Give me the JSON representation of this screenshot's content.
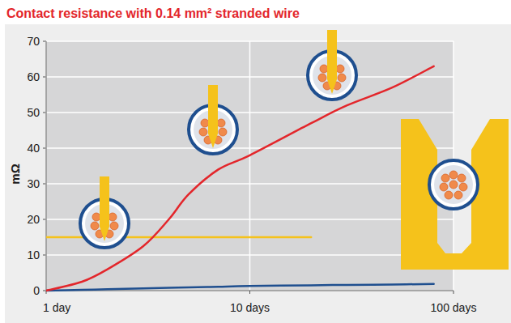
{
  "chart_data": {
    "type": "line",
    "title": "Contact resistance with 0.14 mm² stranded wire",
    "y_label": "mΩ",
    "log": "x",
    "grid": true,
    "x": [
      1,
      1.5,
      2,
      3,
      4,
      5,
      7,
      10,
      20,
      30,
      50,
      80
    ],
    "xlim": [
      1,
      100
    ],
    "xticks": [
      {
        "value": 1,
        "label": "1 day"
      },
      {
        "value": 10,
        "label": "10 days"
      },
      {
        "value": 100,
        "label": "100 days"
      }
    ],
    "ylim": [
      0,
      70
    ],
    "yticks": [
      0,
      10,
      20,
      30,
      40,
      50,
      60,
      70
    ],
    "series": [
      {
        "color": "#e3262b",
        "values": [
          0,
          2.5,
          6,
          12.5,
          20,
          27,
          34,
          38,
          47,
          52,
          57,
          63
        ]
      },
      {
        "color": "#1f4f8f",
        "values": [
          0,
          0.2,
          0.4,
          0.6,
          0.8,
          0.9,
          1.1,
          1.3,
          1.5,
          1.6,
          1.7,
          1.9
        ]
      },
      {
        "color": "#f5c21b",
        "values": [
          15,
          15,
          15,
          15,
          15,
          15,
          15,
          15,
          15,
          null,
          null,
          null
        ]
      }
    ]
  }
}
